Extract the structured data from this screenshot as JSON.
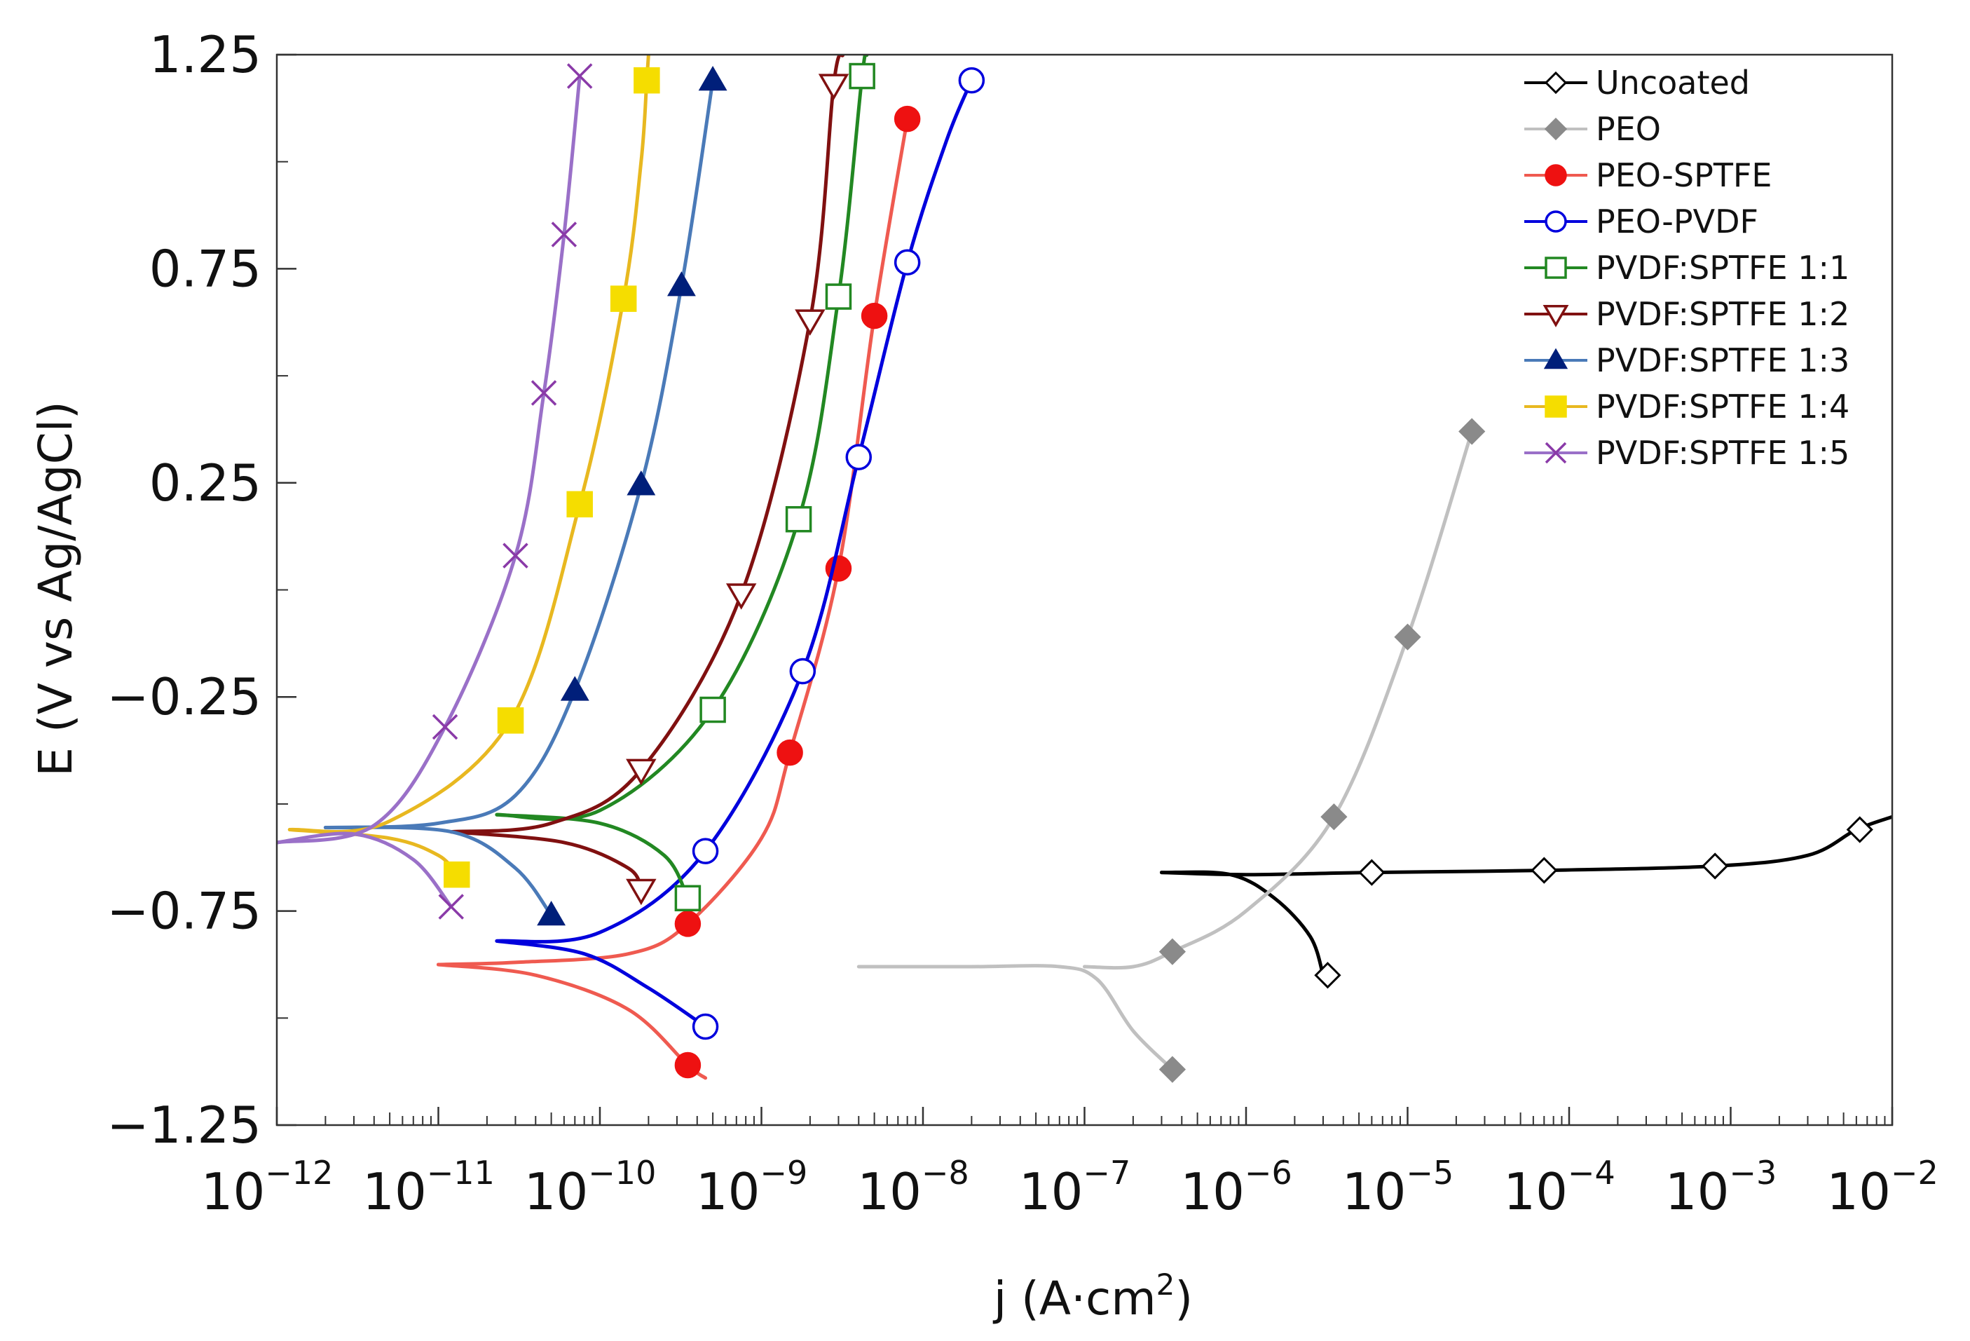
{
  "chart_data": {
    "type": "line",
    "title": "",
    "xlabel_prefix": "j (A·cm",
    "xlabel_sup": "2",
    "xlabel_suffix": ")",
    "ylabel": "E (V vs Ag/AgCl)",
    "xscale": "log",
    "xlim": [
      1e-12,
      0.01
    ],
    "ylim": [
      -1.25,
      1.25
    ],
    "x_ticks": [
      {
        "value": 1e-12,
        "base": "10",
        "exp": "−12"
      },
      {
        "value": 1e-11,
        "base": "10",
        "exp": "−11"
      },
      {
        "value": 1e-10,
        "base": "10",
        "exp": "−10"
      },
      {
        "value": 1e-09,
        "base": "10",
        "exp": "−9"
      },
      {
        "value": 1e-08,
        "base": "10",
        "exp": "−8"
      },
      {
        "value": 1e-07,
        "base": "10",
        "exp": "−7"
      },
      {
        "value": 1e-06,
        "base": "10",
        "exp": "−6"
      },
      {
        "value": 1e-05,
        "base": "10",
        "exp": "−5"
      },
      {
        "value": 0.0001,
        "base": "10",
        "exp": "−4"
      },
      {
        "value": 0.001,
        "base": "10",
        "exp": "−3"
      },
      {
        "value": 0.01,
        "base": "10",
        "exp": "−2"
      }
    ],
    "y_ticks": [
      {
        "value": 1.25,
        "label": "1.25"
      },
      {
        "value": 0.75,
        "label": "0.75"
      },
      {
        "value": 0.25,
        "label": "0.25"
      },
      {
        "value": -0.25,
        "label": "−0.25"
      },
      {
        "value": -0.75,
        "label": "−0.75"
      },
      {
        "value": -1.25,
        "label": "−1.25"
      }
    ],
    "y_minor": [
      1.0,
      0.5,
      0.0,
      -0.5,
      -1.0
    ],
    "grid": false,
    "legend_position": "top-right",
    "series": [
      {
        "name": "Uncoated",
        "color": "#000000",
        "marker": "diamond-open",
        "marker_color": "#000000",
        "anodic": [
          [
            3e-07,
            -0.66
          ],
          [
            1e-06,
            -0.665
          ],
          [
            6e-06,
            -0.66
          ],
          [
            7e-05,
            -0.655
          ],
          [
            0.0008,
            -0.645
          ],
          [
            0.003,
            -0.62
          ],
          [
            0.006,
            -0.56
          ],
          [
            0.01,
            -0.53
          ]
        ],
        "cathodic": [
          [
            3e-07,
            -0.66
          ],
          [
            8e-07,
            -0.665
          ],
          [
            1.5e-06,
            -0.72
          ],
          [
            2.5e-06,
            -0.81
          ],
          [
            3e-06,
            -0.9
          ]
        ],
        "markers": [
          [
            6e-06,
            -0.66
          ],
          [
            7e-05,
            -0.655
          ],
          [
            0.0008,
            -0.645
          ],
          [
            0.0063,
            -0.56
          ],
          [
            3.2e-06,
            -0.9
          ]
        ]
      },
      {
        "name": "PEO",
        "color": "#c0c0c0",
        "marker": "diamond-filled",
        "marker_color": "#8a8a8a",
        "anodic": [
          [
            1e-07,
            -0.88
          ],
          [
            2e-07,
            -0.88
          ],
          [
            3.5e-07,
            -0.845
          ],
          [
            1e-06,
            -0.75
          ],
          [
            3.5e-06,
            -0.53
          ],
          [
            1e-05,
            -0.11
          ],
          [
            2.5e-05,
            0.37
          ]
        ],
        "cathodic": [
          [
            4e-09,
            -0.88
          ],
          [
            2e-08,
            -0.88
          ],
          [
            7e-08,
            -0.88
          ],
          [
            1.2e-07,
            -0.91
          ],
          [
            2e-07,
            -1.03
          ],
          [
            3.5e-07,
            -1.12
          ]
        ],
        "markers": [
          [
            3.5e-07,
            -0.845
          ],
          [
            3.5e-06,
            -0.53
          ],
          [
            1e-05,
            -0.11
          ],
          [
            2.5e-05,
            0.37
          ],
          [
            3.5e-07,
            -1.12
          ]
        ]
      },
      {
        "name": "PEO-SPTFE",
        "color": "#ef5a50",
        "marker": "circle-filled",
        "marker_color": "#ee1111",
        "anodic": [
          [
            1e-11,
            -0.875
          ],
          [
            3e-11,
            -0.87
          ],
          [
            1.5e-10,
            -0.85
          ],
          [
            3.5e-10,
            -0.78
          ],
          [
            1e-09,
            -0.58
          ],
          [
            1.5e-09,
            -0.38
          ],
          [
            3e-09,
            0.05
          ],
          [
            5e-09,
            0.64
          ],
          [
            8e-09,
            1.1
          ]
        ],
        "cathodic": [
          [
            1e-11,
            -0.875
          ],
          [
            4e-11,
            -0.9
          ],
          [
            1.5e-10,
            -0.98
          ],
          [
            3.5e-10,
            -1.11
          ],
          [
            4.5e-10,
            -1.14
          ]
        ],
        "markers": [
          [
            3.5e-10,
            -0.78
          ],
          [
            1.5e-09,
            -0.38
          ],
          [
            3e-09,
            0.05
          ],
          [
            5e-09,
            0.64
          ],
          [
            8e-09,
            1.1
          ],
          [
            3.5e-10,
            -1.11
          ]
        ]
      },
      {
        "name": "PEO-PVDF",
        "color": "#0000dd",
        "marker": "circle-open",
        "marker_color": "#0000dd",
        "anodic": [
          [
            2.3e-11,
            -0.82
          ],
          [
            1e-10,
            -0.8
          ],
          [
            4.5e-10,
            -0.61
          ],
          [
            1.8e-09,
            -0.19
          ],
          [
            4e-09,
            0.31
          ],
          [
            8e-09,
            0.765
          ],
          [
            1.4e-08,
            1.05
          ],
          [
            2e-08,
            1.19
          ]
        ],
        "cathodic": [
          [
            2.3e-11,
            -0.82
          ],
          [
            8e-11,
            -0.85
          ],
          [
            2e-10,
            -0.93
          ],
          [
            4.5e-10,
            -1.02
          ]
        ],
        "markers": [
          [
            4.5e-10,
            -0.61
          ],
          [
            1.8e-09,
            -0.19
          ],
          [
            4e-09,
            0.31
          ],
          [
            8e-09,
            0.765
          ],
          [
            2e-08,
            1.19
          ],
          [
            4.5e-10,
            -1.02
          ]
        ]
      },
      {
        "name": "PVDF:SPTFE 1:1",
        "color": "#228822",
        "marker": "square-open",
        "marker_color": "#228822",
        "anodic": [
          [
            2.3e-11,
            -0.525
          ],
          [
            1e-10,
            -0.515
          ],
          [
            5e-10,
            -0.28
          ],
          [
            1.7e-09,
            0.165
          ],
          [
            3e-09,
            0.685
          ],
          [
            4.2e-09,
            1.2
          ],
          [
            4.5e-09,
            1.25
          ]
        ],
        "cathodic": [
          [
            2.3e-11,
            -0.525
          ],
          [
            1e-10,
            -0.545
          ],
          [
            2.5e-10,
            -0.62
          ],
          [
            3.5e-10,
            -0.72
          ]
        ],
        "markers": [
          [
            5e-10,
            -0.28
          ],
          [
            1.7e-09,
            0.165
          ],
          [
            3e-09,
            0.685
          ],
          [
            4.2e-09,
            1.2
          ],
          [
            3.5e-10,
            -0.72
          ]
        ]
      },
      {
        "name": "PVDF:SPTFE 1:2",
        "color": "#801010",
        "marker": "triangle-down-open",
        "marker_color": "#801010",
        "anodic": [
          [
            1.2e-11,
            -0.565
          ],
          [
            5e-11,
            -0.545
          ],
          [
            1.8e-10,
            -0.42
          ],
          [
            7.5e-10,
            -0.01
          ],
          [
            2e-09,
            0.63
          ],
          [
            2.8e-09,
            1.18
          ],
          [
            3.2e-09,
            1.25
          ]
        ],
        "cathodic": [
          [
            1.2e-11,
            -0.565
          ],
          [
            6e-11,
            -0.59
          ],
          [
            1.5e-10,
            -0.65
          ],
          [
            1.8e-10,
            -0.7
          ]
        ],
        "markers": [
          [
            1.8e-10,
            -0.42
          ],
          [
            7.5e-10,
            -0.01
          ],
          [
            2e-09,
            0.63
          ],
          [
            2.8e-09,
            1.18
          ],
          [
            1.8e-10,
            -0.7
          ]
        ]
      },
      {
        "name": "PVDF:SPTFE 1:3",
        "color": "#4a7ab8",
        "marker": "triangle-up-filled",
        "marker_color": "#001f7a",
        "anodic": [
          [
            2e-12,
            -0.555
          ],
          [
            1e-11,
            -0.545
          ],
          [
            3e-11,
            -0.48
          ],
          [
            7e-11,
            -0.235
          ],
          [
            1.8e-10,
            0.245
          ],
          [
            3.2e-10,
            0.71
          ],
          [
            5e-10,
            1.19
          ]
        ],
        "cathodic": [
          [
            2e-12,
            -0.555
          ],
          [
            1.2e-11,
            -0.565
          ],
          [
            3e-11,
            -0.65
          ],
          [
            5e-11,
            -0.76
          ]
        ],
        "markers": [
          [
            7e-11,
            -0.235
          ],
          [
            1.8e-10,
            0.245
          ],
          [
            3.2e-10,
            0.71
          ],
          [
            5e-10,
            1.19
          ],
          [
            5e-11,
            -0.76
          ]
        ]
      },
      {
        "name": "PVDF:SPTFE 1:4",
        "color": "#e8b820",
        "marker": "square-filled",
        "marker_color": "#f5dd00",
        "anodic": [
          [
            1.2e-12,
            -0.56
          ],
          [
            5e-12,
            -0.54
          ],
          [
            2.8e-11,
            -0.305
          ],
          [
            7.5e-11,
            0.2
          ],
          [
            1.4e-10,
            0.68
          ],
          [
            1.8e-10,
            1.0
          ],
          [
            1.95e-10,
            1.19
          ],
          [
            2e-10,
            1.25
          ]
        ],
        "cathodic": [
          [
            1.2e-12,
            -0.56
          ],
          [
            5e-12,
            -0.58
          ],
          [
            1e-11,
            -0.62
          ],
          [
            1.3e-11,
            -0.665
          ]
        ],
        "markers": [
          [
            2.8e-11,
            -0.305
          ],
          [
            7.5e-11,
            0.2
          ],
          [
            1.4e-10,
            0.68
          ],
          [
            1.95e-10,
            1.19
          ],
          [
            1.3e-11,
            -0.665
          ]
        ]
      },
      {
        "name": "PVDF:SPTFE 1:5",
        "color": "#9a70c8",
        "marker": "x",
        "marker_color": "#8a3aa8",
        "anodic": [
          [
            1e-12,
            -0.59
          ],
          [
            4e-12,
            -0.55
          ],
          [
            1.1e-11,
            -0.32
          ],
          [
            3e-11,
            0.08
          ],
          [
            4.5e-11,
            0.46
          ],
          [
            6e-11,
            0.83
          ],
          [
            7.5e-11,
            1.2
          ]
        ],
        "cathodic": [
          [
            1e-12,
            -0.59
          ],
          [
            3e-12,
            -0.57
          ],
          [
            7e-12,
            -0.63
          ],
          [
            1.2e-11,
            -0.74
          ]
        ],
        "markers": [
          [
            1.1e-11,
            -0.32
          ],
          [
            3e-11,
            0.08
          ],
          [
            4.5e-11,
            0.46
          ],
          [
            6e-11,
            0.83
          ],
          [
            7.5e-11,
            1.2
          ],
          [
            1.2e-11,
            -0.74
          ]
        ]
      }
    ]
  }
}
